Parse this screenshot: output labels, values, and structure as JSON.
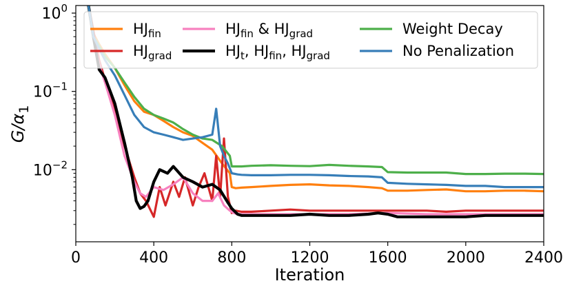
{
  "chart_data": {
    "type": "line",
    "title": "",
    "xlabel": "Iteration",
    "ylabel_main": "G/α",
    "ylabel_sub": "1",
    "xlim": [
      0,
      2400
    ],
    "ylim": [
      0.0012,
      1.25
    ],
    "yscale": "log",
    "xticks": [
      {
        "value": 0,
        "label": "0"
      },
      {
        "value": 400,
        "label": "400"
      },
      {
        "value": 800,
        "label": "800"
      },
      {
        "value": 1200,
        "label": "1200"
      },
      {
        "value": 1600,
        "label": "1600"
      },
      {
        "value": 2000,
        "label": "2000"
      },
      {
        "value": 2400,
        "label": "2400"
      }
    ],
    "yticks": [
      {
        "value": 0.01,
        "base": "10",
        "exp": "−2"
      },
      {
        "value": 0.1,
        "base": "10",
        "exp": "−1"
      },
      {
        "value": 1,
        "base": "10",
        "exp": "0"
      }
    ],
    "grid": false,
    "legend_position": "top",
    "series": [
      {
        "name_parts": [
          {
            "t": "HJ"
          },
          {
            "t": "fin",
            "sub": true
          }
        ],
        "color": "#ff7f0e",
        "width": 3.2,
        "x": [
          60,
          90,
          120,
          150,
          200,
          250,
          300,
          350,
          400,
          450,
          500,
          550,
          600,
          650,
          700,
          750,
          790,
          800,
          820,
          850,
          900,
          1000,
          1100,
          1200,
          1300,
          1400,
          1500,
          1570,
          1600,
          1700,
          1800,
          1900,
          2000,
          2100,
          2200,
          2300,
          2400
        ],
        "y": [
          1.5,
          0.55,
          0.4,
          0.3,
          0.2,
          0.12,
          0.075,
          0.055,
          0.05,
          0.042,
          0.035,
          0.03,
          0.027,
          0.022,
          0.018,
          0.012,
          0.009,
          0.006,
          0.0058,
          0.0059,
          0.006,
          0.0062,
          0.0064,
          0.0065,
          0.0063,
          0.0062,
          0.006,
          0.0058,
          0.0054,
          0.0054,
          0.0055,
          0.0056,
          0.0053,
          0.0053,
          0.0054,
          0.0054,
          0.0053
        ]
      },
      {
        "name_parts": [
          {
            "t": "HJ"
          },
          {
            "t": "grad",
            "sub": true
          }
        ],
        "color": "#d62728",
        "width": 3.2,
        "x": [
          60,
          90,
          120,
          150,
          200,
          250,
          300,
          330,
          360,
          400,
          430,
          460,
          500,
          530,
          560,
          600,
          630,
          660,
          700,
          720,
          740,
          760,
          780,
          800,
          820,
          850,
          900,
          1000,
          1100,
          1200,
          1300,
          1400,
          1500,
          1600,
          1700,
          1800,
          1900,
          2000,
          2100,
          2200,
          2300,
          2400
        ],
        "y": [
          1.5,
          0.6,
          0.25,
          0.14,
          0.06,
          0.02,
          0.008,
          0.005,
          0.004,
          0.0025,
          0.006,
          0.0035,
          0.007,
          0.0045,
          0.008,
          0.0035,
          0.006,
          0.009,
          0.004,
          0.015,
          0.0045,
          0.025,
          0.0045,
          0.0028,
          0.003,
          0.0029,
          0.0029,
          0.003,
          0.0031,
          0.003,
          0.003,
          0.003,
          0.003,
          0.003,
          0.003,
          0.003,
          0.0029,
          0.003,
          0.003,
          0.003,
          0.003,
          0.003
        ]
      },
      {
        "name_parts": [
          {
            "t": "HJ"
          },
          {
            "t": "fin",
            "sub": true
          },
          {
            "t": " & HJ"
          },
          {
            "t": "grad",
            "sub": true
          }
        ],
        "color": "#f781bf",
        "width": 3.2,
        "x": [
          60,
          90,
          120,
          150,
          200,
          250,
          300,
          330,
          360,
          400,
          450,
          500,
          550,
          600,
          650,
          700,
          730,
          760,
          790,
          810,
          830,
          850,
          900,
          1000,
          1200,
          1400,
          1600,
          1800,
          2000,
          2200,
          2400
        ],
        "y": [
          1.5,
          0.5,
          0.22,
          0.13,
          0.05,
          0.015,
          0.007,
          0.005,
          0.0045,
          0.006,
          0.0055,
          0.0065,
          0.008,
          0.005,
          0.004,
          0.004,
          0.005,
          0.0035,
          0.003,
          0.0028,
          0.0027,
          0.0027,
          0.0027,
          0.0027,
          0.0027,
          0.0027,
          0.0028,
          0.0027,
          0.0027,
          0.0027,
          0.0027
        ]
      },
      {
        "name_parts": [
          {
            "t": "HJ"
          },
          {
            "t": "t",
            "sub": true
          },
          {
            "t": ", HJ"
          },
          {
            "t": "fin",
            "sub": true
          },
          {
            "t": ", HJ"
          },
          {
            "t": "grad",
            "sub": true
          }
        ],
        "color": "#000000",
        "width": 4.2,
        "x": [
          60,
          90,
          120,
          150,
          200,
          250,
          290,
          310,
          330,
          350,
          370,
          400,
          430,
          470,
          500,
          550,
          600,
          650,
          700,
          740,
          780,
          800,
          830,
          850,
          900,
          1000,
          1100,
          1200,
          1300,
          1400,
          1500,
          1550,
          1600,
          1650,
          1700,
          1800,
          1900,
          2000,
          2100,
          2200,
          2300,
          2400
        ],
        "y": [
          1.5,
          0.5,
          0.19,
          0.15,
          0.07,
          0.022,
          0.008,
          0.004,
          0.0032,
          0.0034,
          0.004,
          0.007,
          0.01,
          0.009,
          0.011,
          0.008,
          0.007,
          0.006,
          0.0065,
          0.0055,
          0.0038,
          0.0032,
          0.0027,
          0.0026,
          0.0026,
          0.0026,
          0.0026,
          0.0027,
          0.0026,
          0.0026,
          0.0027,
          0.0028,
          0.0027,
          0.0025,
          0.0025,
          0.0025,
          0.0025,
          0.0025,
          0.0026,
          0.0026,
          0.0026,
          0.0026
        ]
      },
      {
        "name_parts": [
          {
            "t": "Weight Decay"
          }
        ],
        "color": "#4daf4a",
        "width": 3.2,
        "x": [
          60,
          90,
          120,
          150,
          200,
          250,
          300,
          350,
          400,
          450,
          500,
          550,
          600,
          650,
          700,
          750,
          790,
          800,
          850,
          900,
          1000,
          1100,
          1200,
          1300,
          1400,
          1500,
          1570,
          1600,
          1700,
          1800,
          1900,
          2000,
          2100,
          2200,
          2300,
          2400
        ],
        "y": [
          1.5,
          0.5,
          0.38,
          0.28,
          0.2,
          0.13,
          0.085,
          0.06,
          0.05,
          0.045,
          0.04,
          0.033,
          0.028,
          0.025,
          0.024,
          0.02,
          0.015,
          0.011,
          0.011,
          0.0112,
          0.0114,
          0.0112,
          0.0111,
          0.0115,
          0.0112,
          0.011,
          0.0108,
          0.0093,
          0.0092,
          0.0092,
          0.0092,
          0.0088,
          0.0088,
          0.0089,
          0.0089,
          0.0088
        ]
      },
      {
        "name_parts": [
          {
            "t": "No Penalization"
          }
        ],
        "color": "#377eb8",
        "width": 3.2,
        "x": [
          60,
          90,
          120,
          150,
          200,
          250,
          300,
          350,
          400,
          450,
          500,
          550,
          600,
          650,
          700,
          720,
          740,
          760,
          780,
          800,
          830,
          850,
          900,
          1000,
          1100,
          1200,
          1300,
          1400,
          1500,
          1570,
          1600,
          1700,
          1800,
          1900,
          2000,
          2100,
          2200,
          2300,
          2400
        ],
        "y": [
          1.5,
          0.5,
          0.35,
          0.25,
          0.16,
          0.09,
          0.05,
          0.035,
          0.03,
          0.028,
          0.026,
          0.024,
          0.025,
          0.026,
          0.028,
          0.06,
          0.02,
          0.015,
          0.012,
          0.009,
          0.0087,
          0.0086,
          0.0085,
          0.0085,
          0.0086,
          0.0086,
          0.0085,
          0.0083,
          0.0082,
          0.008,
          0.0068,
          0.0066,
          0.0065,
          0.0064,
          0.0062,
          0.0062,
          0.006,
          0.006,
          0.006
        ]
      }
    ],
    "legend_order": [
      0,
      1,
      2,
      3,
      4,
      5
    ]
  }
}
